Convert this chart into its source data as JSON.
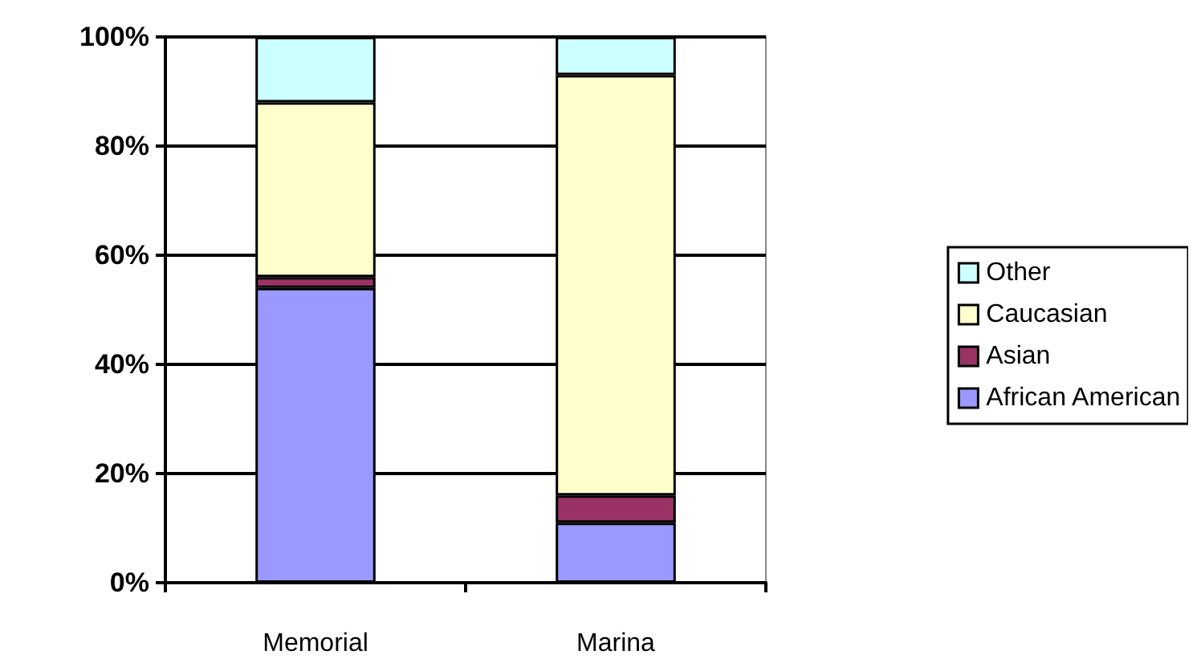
{
  "chart_data": {
    "type": "bar",
    "stacked": true,
    "categories": [
      "Memorial",
      "Marina"
    ],
    "series": [
      {
        "name": "African American",
        "color": "#9999ff",
        "values": [
          54,
          11
        ]
      },
      {
        "name": "Asian",
        "color": "#993366",
        "values": [
          2,
          5
        ]
      },
      {
        "name": "Caucasian",
        "color": "#ffffcc",
        "values": [
          32,
          77
        ]
      },
      {
        "name": "Other",
        "color": "#ccffff",
        "values": [
          12,
          7
        ]
      }
    ],
    "ylim": [
      0,
      100
    ],
    "yticks": [
      {
        "value": 0,
        "label": "0%"
      },
      {
        "value": 20,
        "label": "20%"
      },
      {
        "value": 40,
        "label": "40%"
      },
      {
        "value": 60,
        "label": "60%"
      },
      {
        "value": 80,
        "label": "80%"
      },
      {
        "value": 100,
        "label": "100%"
      }
    ],
    "grid": "y",
    "legend": "right"
  }
}
